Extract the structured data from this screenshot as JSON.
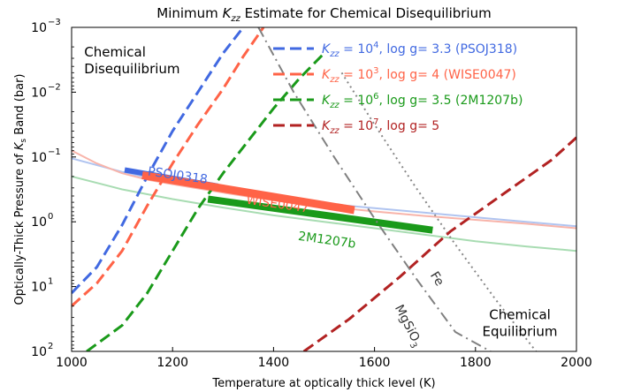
{
  "chart_data": {
    "type": "line",
    "title_parts": [
      "Minimum ",
      "K",
      "zz",
      " Estimate for Chemical Disequilibrium"
    ],
    "xlabel": "Temperature at optically thick level (K)",
    "ylabel_parts": [
      "Optically-Thick Pressure of ",
      "K",
      "s",
      " Band (bar)"
    ],
    "xlim": [
      1000,
      2000
    ],
    "ylim_log10": [
      -3,
      2
    ],
    "y_inverted": true,
    "y_scale": "log",
    "xticks": [
      1000,
      1200,
      1400,
      1600,
      1800,
      2000
    ],
    "xtick_labels": [
      "1000",
      "1200",
      "1400",
      "1600",
      "1800",
      "2000"
    ],
    "yticks_log10": [
      -3,
      -2,
      -1,
      0,
      1,
      2
    ],
    "ytick_labels": [
      {
        "base": "10",
        "exp": "−3"
      },
      {
        "base": "10",
        "exp": "−2"
      },
      {
        "base": "10",
        "exp": "−1"
      },
      {
        "base": "10",
        "exp": "0"
      },
      {
        "base": "10",
        "exp": "1"
      },
      {
        "base": "10",
        "exp": "2"
      }
    ],
    "legend_position": "top-right",
    "legend": [
      {
        "k": "K",
        "sub": "zz",
        "eq": " = 10",
        "exp": "4",
        "rest": ", log g= 3.3 (PSOJ318)",
        "color": "#4169e1"
      },
      {
        "k": "K",
        "sub": "zz",
        "eq": " = 10",
        "exp": "3",
        "rest": ", log g= 4 (WISE0047)",
        "color": "#ff6347"
      },
      {
        "k": "K",
        "sub": "zz",
        "eq": " = 10",
        "exp": "6",
        "rest": ", log g= 3.5 (2M1207b)",
        "color": "#1a9a1a"
      },
      {
        "k": "K",
        "sub": "zz",
        "eq": " = 10",
        "exp": "7",
        "rest": ", log g= 5",
        "color": "#b22222"
      }
    ],
    "series": [
      {
        "name": "PSOJ318 quench (Kzz=1e4)",
        "color": "#4169e1",
        "style": "dashed",
        "width": 3,
        "x": [
          1000,
          1050,
          1100,
          1150,
          1200,
          1250,
          1300,
          1340
        ],
        "logp": [
          1.1,
          0.7,
          0.05,
          -0.7,
          -1.4,
          -2.0,
          -2.6,
          -3.0
        ]
      },
      {
        "name": "WISE0047 quench (Kzz=1e3)",
        "color": "#ff6347",
        "style": "dashed",
        "width": 3,
        "x": [
          1000,
          1050,
          1100,
          1150,
          1200,
          1250,
          1300,
          1340,
          1380
        ],
        "logp": [
          1.3,
          0.95,
          0.45,
          -0.25,
          -0.9,
          -1.5,
          -2.05,
          -2.55,
          -3.0
        ]
      },
      {
        "name": "2M1207b quench (Kzz=1e6)",
        "color": "#1a9a1a",
        "style": "dashed",
        "width": 3,
        "x": [
          1030,
          1100,
          1150,
          1200,
          1250,
          1300,
          1350,
          1400,
          1450,
          1500
        ],
        "logp": [
          2.0,
          1.6,
          1.1,
          0.45,
          -0.2,
          -0.75,
          -1.25,
          -1.75,
          -2.2,
          -2.6
        ]
      },
      {
        "name": "Kzz=1e7 log g=5",
        "color": "#b22222",
        "style": "dashed",
        "width": 3,
        "x": [
          1460,
          1550,
          1650,
          1750,
          1850,
          1950,
          2000
        ],
        "logp": [
          2.0,
          1.5,
          0.85,
          0.15,
          -0.4,
          -0.95,
          -1.3
        ]
      },
      {
        "name": "PSOJ318 profile",
        "color": "#b0c4f0",
        "style": "solid",
        "width": 2,
        "x": [
          1000,
          1100,
          1200,
          1300,
          1400,
          1500,
          1600,
          1700,
          1800,
          1900,
          2000
        ],
        "logp": [
          -0.98,
          -0.77,
          -0.6,
          -0.47,
          -0.37,
          -0.28,
          -0.21,
          -0.14,
          -0.07,
          0.0,
          0.07
        ]
      },
      {
        "name": "WISE0047 profile",
        "color": "#f8b4aa",
        "style": "solid",
        "width": 2,
        "x": [
          1000,
          1050,
          1100,
          1150,
          1200,
          1300,
          1400,
          1500,
          1600,
          1700,
          1800,
          1900,
          2000
        ],
        "logp": [
          -1.1,
          -0.9,
          -0.75,
          -0.65,
          -0.58,
          -0.45,
          -0.33,
          -0.24,
          -0.16,
          -0.09,
          -0.03,
          0.03,
          0.1
        ]
      },
      {
        "name": "2M1207b profile",
        "color": "#a8dcb2",
        "style": "solid",
        "width": 2,
        "x": [
          1000,
          1100,
          1200,
          1300,
          1400,
          1500,
          1600,
          1700,
          1800,
          1900,
          2000
        ],
        "logp": [
          -0.7,
          -0.5,
          -0.35,
          -0.22,
          -0.1,
          0.0,
          0.1,
          0.2,
          0.3,
          0.38,
          0.45
        ]
      },
      {
        "name": "PSOJ0318 emission band",
        "color": "#4169e1",
        "style": "solid",
        "width": 6,
        "x": [
          1105,
          1290
        ],
        "logp": [
          -0.8,
          -0.55
        ]
      },
      {
        "name": "WISE0047 emission band",
        "color": "#ff6347",
        "style": "solid",
        "width": 9,
        "x": [
          1140,
          1560
        ],
        "logp": [
          -0.72,
          -0.18
        ]
      },
      {
        "name": "2M1207b emission band",
        "color": "#1a9a1a",
        "style": "solid",
        "width": 8,
        "x": [
          1270,
          1715
        ],
        "logp": [
          -0.35,
          0.13
        ]
      },
      {
        "name": "MgSiO3 condensation",
        "color": "#808080",
        "style": "dashdot",
        "width": 2,
        "x": [
          1370,
          1440,
          1520,
          1600,
          1680,
          1760,
          1830
        ],
        "logp": [
          -3.0,
          -2.0,
          -1.0,
          -0.05,
          0.85,
          1.7,
          2.0
        ]
      },
      {
        "name": "Fe condensation",
        "color": "#888888",
        "style": "dotted",
        "width": 2,
        "x": [
          1535,
          1600,
          1680,
          1760,
          1840,
          1920,
          1985
        ],
        "logp": [
          -2.3,
          -1.5,
          -0.55,
          0.35,
          1.2,
          2.0,
          2.4
        ]
      },
      {
        "name": "WISE0047 upper profile",
        "color": "#f8c0b8",
        "style": "solid",
        "width": 3,
        "x": [
          1960,
          2000
        ],
        "logp": [
          -1.35,
          -1.55
        ]
      }
    ],
    "curve_labels": [
      {
        "text": "PSOJ0318",
        "x": 1150,
        "logp": -0.72,
        "color": "#4169e1",
        "angle": 8
      },
      {
        "text": "WISE0047",
        "x": 1345,
        "logp": -0.28,
        "color": "#ff6347",
        "angle": 8
      },
      {
        "text": "2M1207b",
        "x": 1448,
        "logp": 0.28,
        "color": "#1a9a1a",
        "angle": 8
      },
      {
        "text": "MgSiO",
        "sub": "3",
        "x": 1640,
        "logp": 1.32,
        "color": "#333333",
        "angle": 63
      },
      {
        "text": "Fe",
        "x": 1710,
        "logp": 0.82,
        "color": "#333333",
        "angle": 58
      }
    ],
    "annotations": [
      {
        "lines": [
          "Chemical",
          "Disequilibrium"
        ],
        "x": 1025,
        "logp": -2.55,
        "color": "#000000",
        "anchor": "start"
      },
      {
        "lines": [
          "Chemical",
          "Equilibrium"
        ],
        "x": 1888,
        "logp": 1.5,
        "color": "#000000",
        "anchor": "middle"
      }
    ]
  }
}
